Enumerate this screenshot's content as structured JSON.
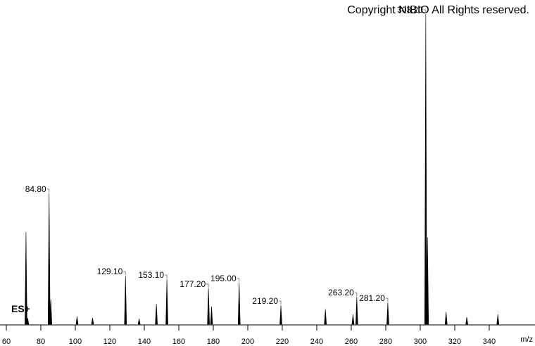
{
  "chart_data": {
    "type": "spectrum",
    "title": "Copyright NIBIO All Rights reserved.",
    "annotation": "ES+",
    "x_label": "m/z",
    "color": "#000000",
    "xlim": [
      56.33,
      364.5
    ],
    "ylim": [
      0,
      100
    ],
    "xticks": [
      60,
      80,
      100,
      120,
      140,
      160,
      180,
      200,
      220,
      240,
      260,
      280,
      300,
      320,
      340
    ],
    "x": [
      71.4,
      72.4,
      84.8,
      85.8,
      101,
      110,
      129.1,
      137,
      147,
      153.1,
      177.2,
      179,
      195,
      219.2,
      245,
      261,
      263.2,
      281.2,
      303.2,
      304.2,
      315,
      327,
      345
    ],
    "values": [
      29.7,
      2,
      42.2,
      8,
      2.5,
      2,
      15.6,
      1.8,
      6.6,
      14.5,
      11.6,
      5.7,
      13.4,
      6.1,
      4.8,
      3.2,
      8.8,
      7,
      100,
      28,
      4,
      2.3,
      3.2
    ],
    "x_labels": [
      null,
      null,
      "84.80",
      null,
      null,
      null,
      "129.10",
      null,
      null,
      "153.10",
      "177.20",
      null,
      "195.00",
      "219.20",
      null,
      null,
      "263.20",
      "281.20",
      "303.20",
      null,
      null,
      null,
      null
    ]
  }
}
